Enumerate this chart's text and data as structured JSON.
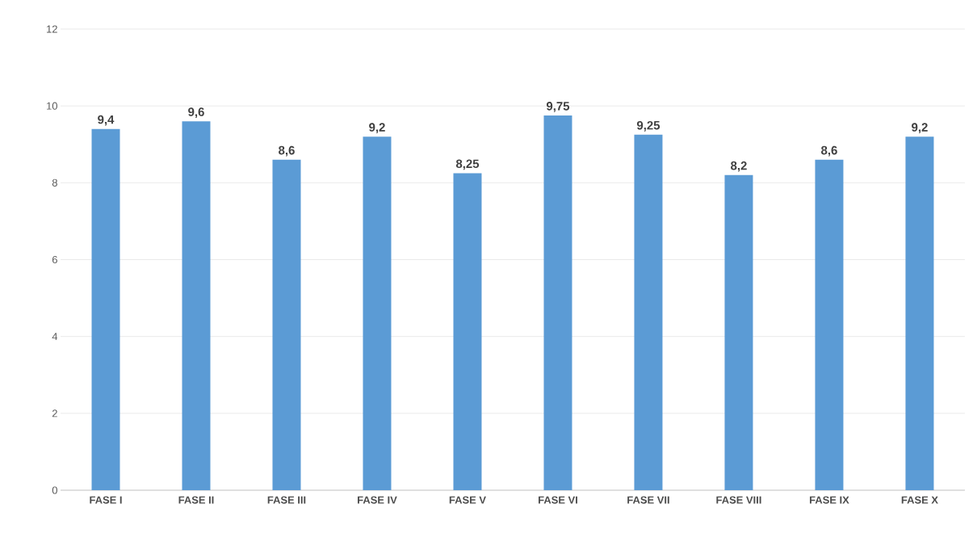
{
  "chart_data": {
    "type": "bar",
    "categories": [
      "FASE I",
      "FASE II",
      "FASE III",
      "FASE IV",
      "FASE V",
      "FASE VI",
      "FASE VII",
      "FASE VIII",
      "FASE IX",
      "FASE X"
    ],
    "values": [
      9.4,
      9.6,
      8.6,
      9.2,
      8.25,
      9.75,
      9.25,
      8.2,
      8.6,
      9.2
    ],
    "value_labels": [
      "9,4",
      "9,6",
      "8,6",
      "9,2",
      "8,25",
      "9,75",
      "9,25",
      "8,2",
      "8,6",
      "9,2"
    ],
    "color": "#5b9bd5",
    "ylim": [
      0,
      12
    ],
    "yticks": [
      0,
      2,
      4,
      6,
      8,
      10,
      12
    ],
    "grid": "y"
  }
}
